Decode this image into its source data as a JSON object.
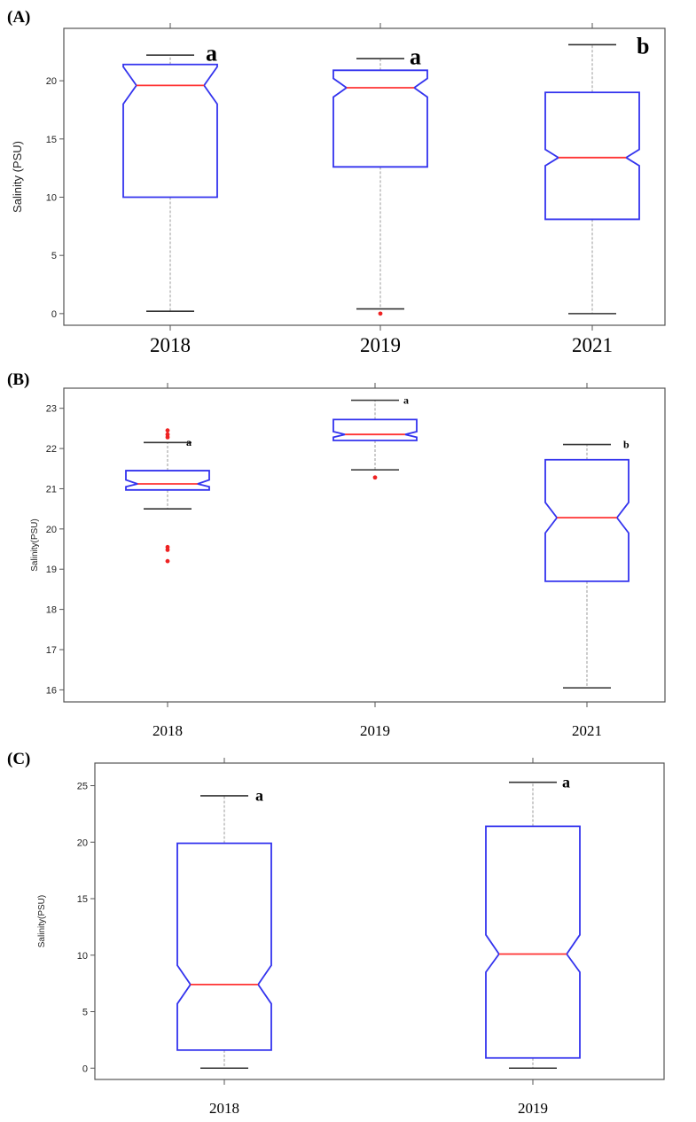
{
  "colors": {
    "box": "#3333ee",
    "median": "#ff3333",
    "whisker": "#999999",
    "cap": "#333333",
    "outlier": "#ee2222",
    "frame": "#555555"
  },
  "chart_data": [
    {
      "panel": "(A)",
      "type": "boxplot",
      "ylabel": "Salinity (PSU)",
      "ylim": [
        -1,
        24.5
      ],
      "yticks": [
        0,
        5,
        10,
        15,
        20
      ],
      "notched": true,
      "categories": [
        "2018",
        "2019",
        "2021"
      ],
      "boxes": [
        {
          "category": "2018",
          "min": 0.2,
          "q1": 10.0,
          "median": 19.6,
          "q3": 21.4,
          "max": 22.2,
          "notch_low": 18.0,
          "notch_high": 21.2,
          "outliers": [],
          "group_letter": "a"
        },
        {
          "category": "2019",
          "min": 0.4,
          "q1": 12.6,
          "median": 19.4,
          "q3": 20.9,
          "max": 21.9,
          "notch_low": 18.6,
          "notch_high": 20.2,
          "outliers": [
            0.0
          ],
          "group_letter": "a"
        },
        {
          "category": "2021",
          "min": 0.0,
          "q1": 8.1,
          "median": 13.4,
          "q3": 19.0,
          "max": 23.1,
          "notch_low": 12.7,
          "notch_high": 14.1,
          "outliers": [],
          "group_letter": "b"
        }
      ]
    },
    {
      "panel": "(B)",
      "type": "boxplot",
      "ylabel": "Salinity(PSU)",
      "ylim": [
        15.7,
        23.5
      ],
      "yticks": [
        16,
        17,
        18,
        19,
        20,
        21,
        22,
        23
      ],
      "notched": true,
      "categories": [
        "2018",
        "2019",
        "2021"
      ],
      "boxes": [
        {
          "category": "2018",
          "min": 20.5,
          "q1": 20.97,
          "median": 21.12,
          "q3": 21.45,
          "max": 22.15,
          "notch_low": 21.05,
          "notch_high": 21.22,
          "outliers": [
            22.45,
            22.35,
            22.28,
            19.55,
            19.48,
            19.2
          ],
          "group_letter": "a"
        },
        {
          "category": "2019",
          "min": 21.47,
          "q1": 22.2,
          "median": 22.35,
          "q3": 22.72,
          "max": 23.2,
          "notch_low": 22.28,
          "notch_high": 22.42,
          "outliers": [
            21.28
          ],
          "group_letter": "a"
        },
        {
          "category": "2021",
          "min": 16.05,
          "q1": 18.7,
          "median": 20.28,
          "q3": 21.72,
          "max": 22.1,
          "notch_low": 19.9,
          "notch_high": 20.66,
          "outliers": [],
          "group_letter": "b"
        }
      ]
    },
    {
      "panel": "(C)",
      "type": "boxplot",
      "ylabel": "Salinity(PSU)",
      "ylim": [
        -1,
        27
      ],
      "yticks": [
        0,
        5,
        10,
        15,
        20,
        25
      ],
      "notched": true,
      "categories": [
        "2018",
        "2019"
      ],
      "boxes": [
        {
          "category": "2018",
          "min": 0.0,
          "q1": 1.6,
          "median": 7.4,
          "q3": 19.9,
          "max": 24.1,
          "notch_low": 5.7,
          "notch_high": 9.1,
          "outliers": [],
          "group_letter": "a"
        },
        {
          "category": "2019",
          "min": 0.0,
          "q1": 0.9,
          "median": 10.1,
          "q3": 21.4,
          "max": 25.3,
          "notch_low": 8.5,
          "notch_high": 11.8,
          "outliers": [],
          "group_letter": "a"
        }
      ]
    }
  ]
}
